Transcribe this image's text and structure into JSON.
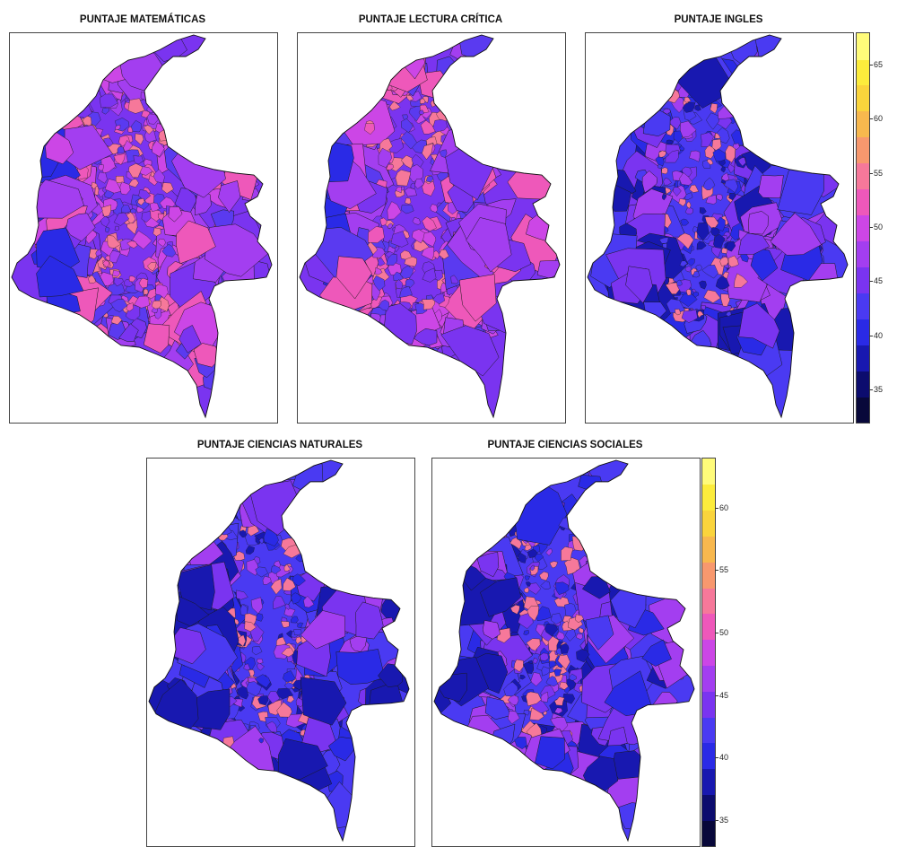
{
  "figure": {
    "panels": [
      {
        "title": "PUNTAJE MATEMÁTICAS",
        "style": "magenta"
      },
      {
        "title": "PUNTAJE LECTURA CRÍTICA",
        "style": "magenta"
      },
      {
        "title": "PUNTAJE INGLES",
        "style": "blue"
      },
      {
        "title": "PUNTAJE CIENCIAS NATURALES",
        "style": "blue"
      },
      {
        "title": "PUNTAJE CIENCIAS SOCIALES",
        "style": "blue"
      }
    ],
    "legend_top": {
      "range": [
        32,
        68
      ],
      "ticks": [
        "65",
        "60",
        "55",
        "50",
        "45",
        "40",
        "35"
      ],
      "tick_values": [
        65,
        60,
        55,
        50,
        45,
        40,
        35
      ]
    },
    "legend_bottom": {
      "range": [
        33,
        64
      ],
      "ticks": [
        "60",
        "55",
        "50",
        "45",
        "40",
        "35"
      ],
      "tick_values": [
        60,
        55,
        50,
        45,
        40,
        35
      ]
    },
    "palette": [
      "#08083a",
      "#0c0c6e",
      "#1818b0",
      "#2a2ae6",
      "#4a3af2",
      "#7a34f0",
      "#a33ef0",
      "#cc46e6",
      "#ee58ba",
      "#f6789a",
      "#f8986e",
      "#f8b84e",
      "#fad43c",
      "#fcec3c",
      "#fffb7a"
    ],
    "map_fill_magenta": [
      "#7a34f0",
      "#a33ef0",
      "#cc46e6",
      "#5a3af0",
      "#ee58ba"
    ],
    "map_fill_blue": [
      "#4a3af2",
      "#2a2ae6",
      "#7a34f0",
      "#a33ef0",
      "#1818b0"
    ]
  }
}
